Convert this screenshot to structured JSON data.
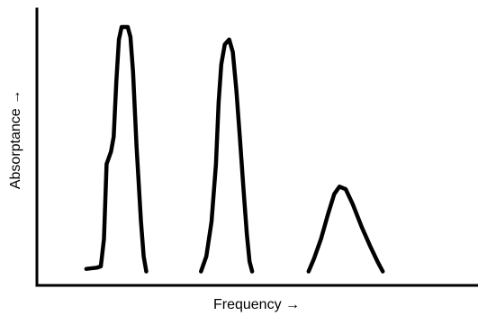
{
  "chart_data": {
    "type": "line",
    "title": "",
    "xlabel": "Frequency",
    "ylabel": "Absorptance",
    "x_arrow": "→",
    "y_arrow": "→",
    "xlim": [
      0,
      100
    ],
    "ylim": [
      0,
      100
    ],
    "grid": false,
    "legend": "none",
    "series": [
      {
        "points": [
          [
            11.2,
            3
          ],
          [
            13.6,
            3.5
          ],
          [
            14.5,
            4
          ],
          [
            15.2,
            15
          ],
          [
            15.8,
            45
          ],
          [
            16.8,
            50
          ],
          [
            17.4,
            56
          ],
          [
            18.0,
            78
          ],
          [
            18.6,
            95
          ],
          [
            19.2,
            100
          ],
          [
            20.6,
            100
          ],
          [
            21.2,
            96
          ],
          [
            21.8,
            82
          ],
          [
            22.6,
            52
          ],
          [
            23.6,
            22
          ],
          [
            24.2,
            8
          ],
          [
            24.8,
            2
          ]
        ]
      },
      {
        "points": [
          [
            37.2,
            2
          ],
          [
            38.4,
            8
          ],
          [
            39.6,
            22
          ],
          [
            40.6,
            45
          ],
          [
            41.2,
            70
          ],
          [
            41.8,
            85
          ],
          [
            42.6,
            93
          ],
          [
            43.6,
            95
          ],
          [
            44.4,
            90
          ],
          [
            45.2,
            75
          ],
          [
            46.0,
            56
          ],
          [
            46.8,
            36
          ],
          [
            47.6,
            17
          ],
          [
            48.2,
            6
          ],
          [
            48.8,
            2
          ]
        ]
      },
      {
        "points": [
          [
            61.6,
            2
          ],
          [
            62.8,
            7
          ],
          [
            64.4,
            15
          ],
          [
            66.0,
            25
          ],
          [
            67.4,
            33
          ],
          [
            68.6,
            36
          ],
          [
            70.0,
            35
          ],
          [
            71.6,
            29
          ],
          [
            73.6,
            20
          ],
          [
            75.6,
            12
          ],
          [
            77.2,
            6
          ],
          [
            78.4,
            2
          ]
        ]
      }
    ]
  },
  "labels": {
    "x_axis_text": "Frequency  →",
    "y_axis_text": "Absorptance  →"
  }
}
